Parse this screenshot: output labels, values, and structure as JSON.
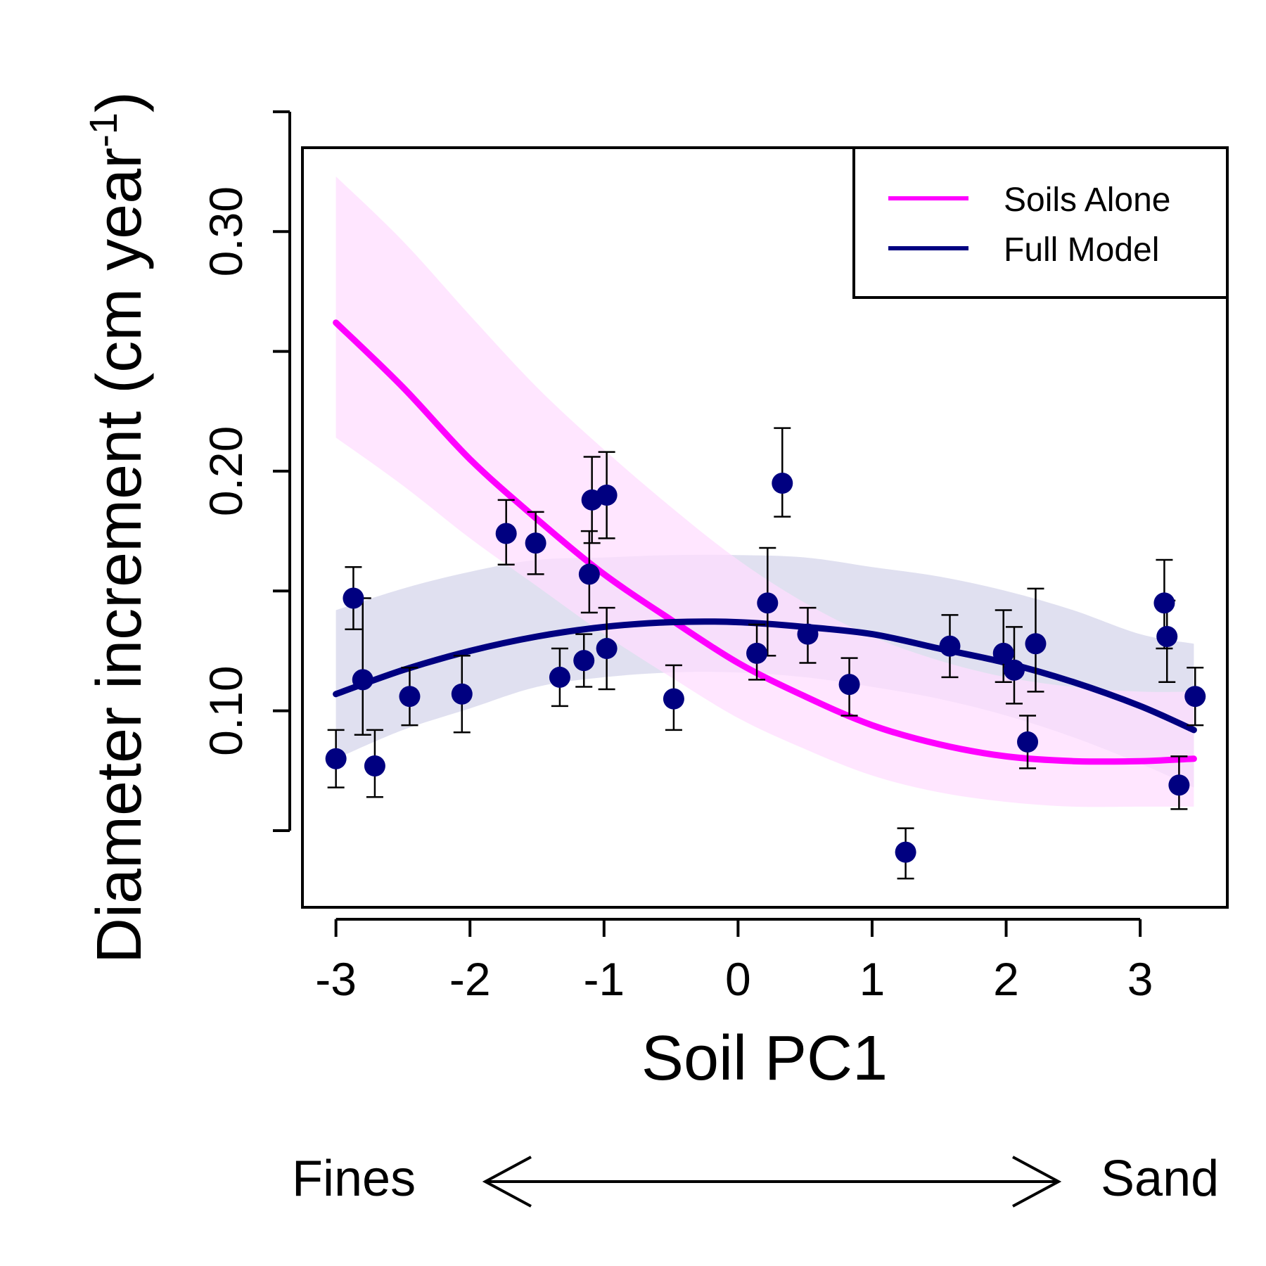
{
  "chart_data": {
    "type": "scatter",
    "xlabel": "Soil PC1",
    "ylabel_main": "Diameter increment (cm year",
    "ylabel_sup": "-1",
    "ylabel_close": ")",
    "xlim": [
      -3.25,
      3.65
    ],
    "ylim": [
      0.018,
      0.335
    ],
    "x_ticks": [
      -3,
      -2,
      -1,
      0,
      1,
      2,
      3
    ],
    "x_tick_labels": [
      "-3",
      "-2",
      "-1",
      "0",
      "1",
      "2",
      "3"
    ],
    "y_ticks": [
      0.05,
      0.1,
      0.15,
      0.2,
      0.25,
      0.3,
      0.35
    ],
    "y_tick_labels": [
      "",
      "0.10",
      "",
      "0.20",
      "",
      "0.30",
      ""
    ],
    "grid": false,
    "legend": {
      "position": "top-right",
      "entries": [
        {
          "label": "Soils Alone",
          "color": "#ff00ff"
        },
        {
          "label": "Full Model",
          "color": "#000080"
        }
      ]
    },
    "point_color": "#000080",
    "points": [
      {
        "x": -3.0,
        "y": 0.08,
        "lo": 0.068,
        "hi": 0.092
      },
      {
        "x": -2.87,
        "y": 0.147,
        "lo": 0.134,
        "hi": 0.16
      },
      {
        "x": -2.8,
        "y": 0.113,
        "lo": 0.09,
        "hi": 0.147
      },
      {
        "x": -2.71,
        "y": 0.077,
        "lo": 0.064,
        "hi": 0.092
      },
      {
        "x": -2.45,
        "y": 0.106,
        "lo": 0.094,
        "hi": 0.118
      },
      {
        "x": -2.06,
        "y": 0.107,
        "lo": 0.091,
        "hi": 0.123
      },
      {
        "x": -1.73,
        "y": 0.174,
        "lo": 0.161,
        "hi": 0.188
      },
      {
        "x": -1.51,
        "y": 0.17,
        "lo": 0.157,
        "hi": 0.183
      },
      {
        "x": -1.33,
        "y": 0.114,
        "lo": 0.102,
        "hi": 0.126
      },
      {
        "x": -1.15,
        "y": 0.121,
        "lo": 0.11,
        "hi": 0.132
      },
      {
        "x": -1.11,
        "y": 0.157,
        "lo": 0.141,
        "hi": 0.175
      },
      {
        "x": -1.09,
        "y": 0.188,
        "lo": 0.17,
        "hi": 0.206
      },
      {
        "x": -0.98,
        "y": 0.126,
        "lo": 0.109,
        "hi": 0.143
      },
      {
        "x": -0.98,
        "y": 0.19,
        "lo": 0.172,
        "hi": 0.208
      },
      {
        "x": -0.48,
        "y": 0.105,
        "lo": 0.092,
        "hi": 0.119
      },
      {
        "x": 0.14,
        "y": 0.124,
        "lo": 0.113,
        "hi": 0.136
      },
      {
        "x": 0.22,
        "y": 0.145,
        "lo": 0.123,
        "hi": 0.168
      },
      {
        "x": 0.33,
        "y": 0.195,
        "lo": 0.181,
        "hi": 0.218
      },
      {
        "x": 0.52,
        "y": 0.132,
        "lo": 0.12,
        "hi": 0.143
      },
      {
        "x": 0.83,
        "y": 0.111,
        "lo": 0.098,
        "hi": 0.122
      },
      {
        "x": 1.25,
        "y": 0.041,
        "lo": 0.03,
        "hi": 0.051
      },
      {
        "x": 1.58,
        "y": 0.127,
        "lo": 0.114,
        "hi": 0.14
      },
      {
        "x": 1.98,
        "y": 0.124,
        "lo": 0.112,
        "hi": 0.142
      },
      {
        "x": 2.06,
        "y": 0.117,
        "lo": 0.103,
        "hi": 0.135
      },
      {
        "x": 2.16,
        "y": 0.087,
        "lo": 0.076,
        "hi": 0.098
      },
      {
        "x": 2.22,
        "y": 0.128,
        "lo": 0.108,
        "hi": 0.151
      },
      {
        "x": 3.18,
        "y": 0.145,
        "lo": 0.126,
        "hi": 0.163
      },
      {
        "x": 3.2,
        "y": 0.131,
        "lo": 0.112,
        "hi": 0.146
      },
      {
        "x": 3.29,
        "y": 0.069,
        "lo": 0.059,
        "hi": 0.081
      },
      {
        "x": 3.41,
        "y": 0.106,
        "lo": 0.094,
        "hi": 0.118
      }
    ],
    "series": [
      {
        "name": "Soils Alone",
        "color": "#ff00ff",
        "band_color": "#ffddff",
        "x": [
          -3.0,
          -2.5,
          -2.0,
          -1.5,
          -1.0,
          -0.5,
          0.0,
          0.5,
          1.0,
          1.5,
          2.0,
          2.5,
          3.0,
          3.4
        ],
        "y": [
          0.262,
          0.235,
          0.205,
          0.18,
          0.157,
          0.138,
          0.12,
          0.106,
          0.094,
          0.086,
          0.081,
          0.079,
          0.079,
          0.08
        ],
        "lo": [
          0.214,
          0.194,
          0.172,
          0.152,
          0.132,
          0.114,
          0.097,
          0.084,
          0.073,
          0.066,
          0.062,
          0.06,
          0.06,
          0.06
        ],
        "hi": [
          0.323,
          0.296,
          0.265,
          0.235,
          0.209,
          0.185,
          0.163,
          0.145,
          0.131,
          0.121,
          0.114,
          0.11,
          0.108,
          0.108
        ]
      },
      {
        "name": "Full Model",
        "color": "#000080",
        "band_color": "#e0e0f0",
        "x": [
          -3.0,
          -2.5,
          -2.0,
          -1.5,
          -1.0,
          -0.5,
          0.0,
          0.5,
          1.0,
          1.5,
          2.0,
          2.5,
          3.0,
          3.4
        ],
        "y": [
          0.107,
          0.117,
          0.125,
          0.131,
          0.135,
          0.137,
          0.137,
          0.135,
          0.132,
          0.126,
          0.12,
          0.112,
          0.102,
          0.092
        ],
        "lo": [
          0.08,
          0.092,
          0.101,
          0.11,
          0.114,
          0.116,
          0.116,
          0.114,
          0.11,
          0.105,
          0.098,
          0.089,
          0.078,
          0.068
        ],
        "hi": [
          0.142,
          0.151,
          0.158,
          0.163,
          0.164,
          0.165,
          0.165,
          0.164,
          0.16,
          0.156,
          0.15,
          0.142,
          0.132,
          0.128
        ]
      }
    ],
    "annotation": {
      "left_label": "Fines",
      "right_label": "Sand"
    }
  }
}
